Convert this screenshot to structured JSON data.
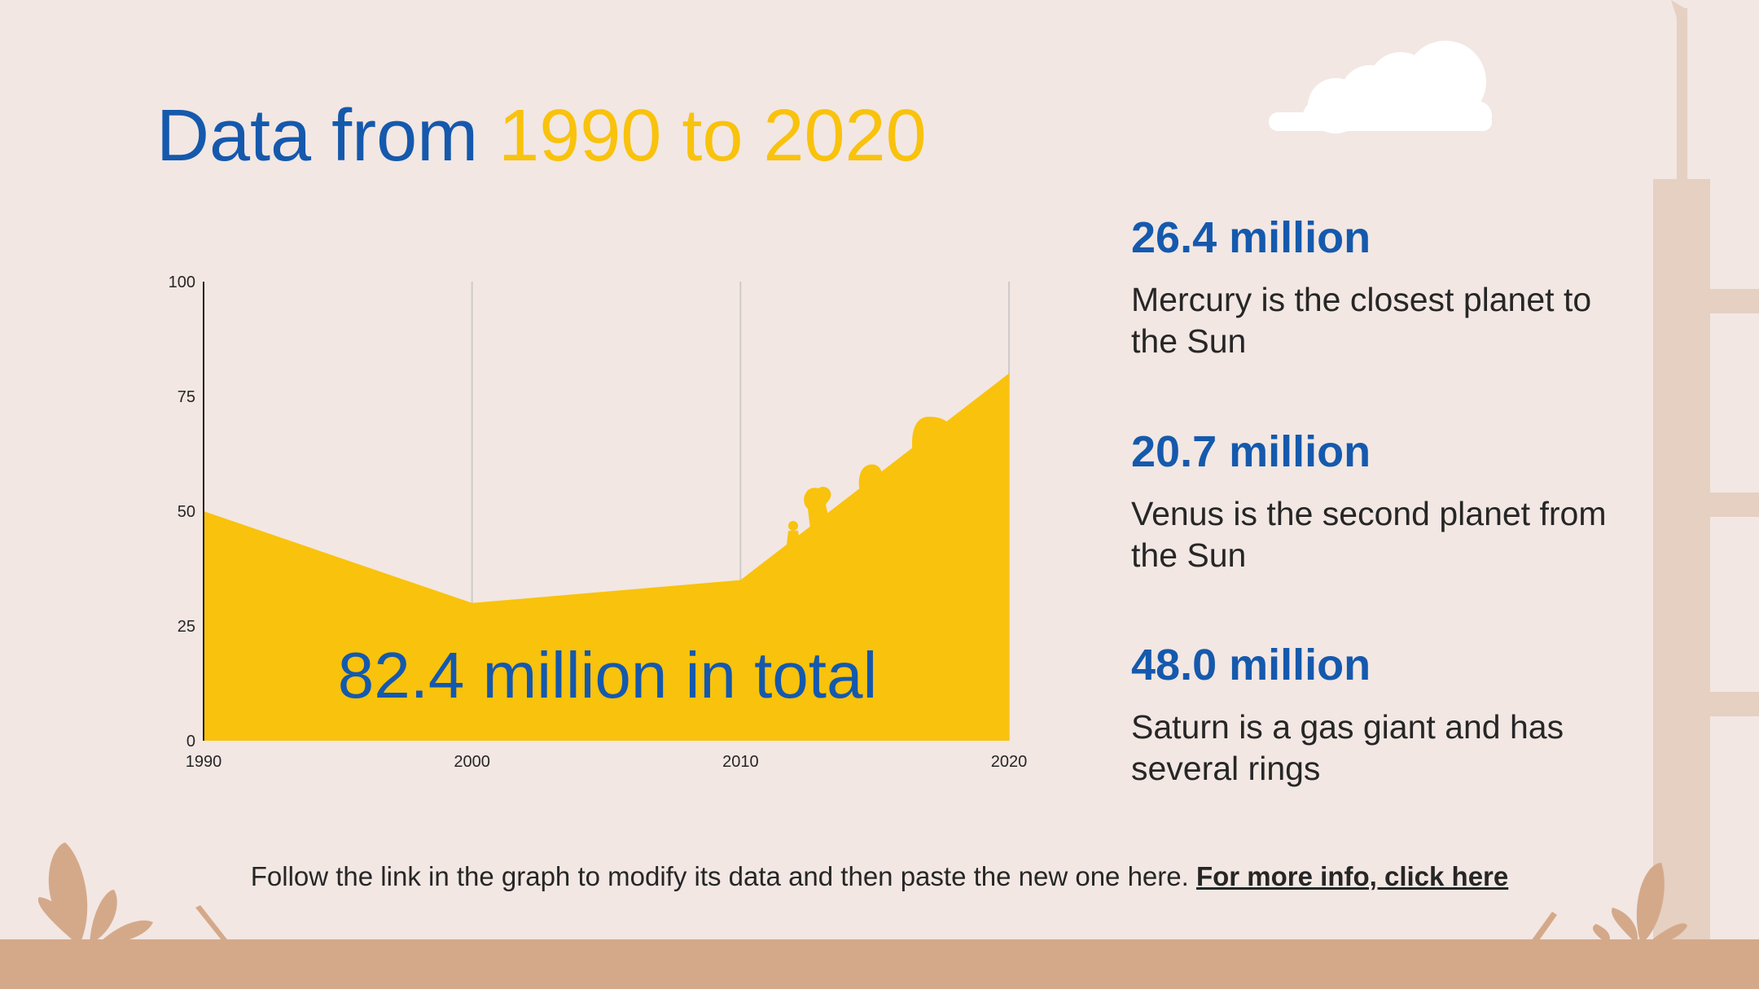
{
  "title": {
    "part1": "Data from",
    "part2": "1990 to 2020"
  },
  "total_label": "82.4 million in total",
  "stats": [
    {
      "value": "26.4 million",
      "description": "Mercury is the closest planet to the Sun"
    },
    {
      "value": "20.7 million",
      "description": "Venus is the second planet from the Sun"
    },
    {
      "value": "48.0 million",
      "description": "Saturn is a gas giant and has several rings"
    }
  ],
  "footer": {
    "text": "Follow the link in the graph to modify its data and then paste the new one here.",
    "link": "For more info, click here"
  },
  "colors": {
    "primary_blue": "#1559ad",
    "accent_yellow": "#f9c20c",
    "background": "#f2e7e3",
    "ground": "#d4a98a",
    "text": "#262626"
  },
  "chart_data": {
    "type": "area",
    "x": [
      1990,
      2000,
      2010,
      2020
    ],
    "values": [
      50,
      30,
      35,
      80
    ],
    "xticks": [
      "1990",
      "2000",
      "2010",
      "2020"
    ],
    "yticks": [
      "0",
      "25",
      "50",
      "75",
      "100"
    ],
    "ylim": [
      0,
      100
    ],
    "grid": "vertical",
    "color": "#f9c20c"
  }
}
